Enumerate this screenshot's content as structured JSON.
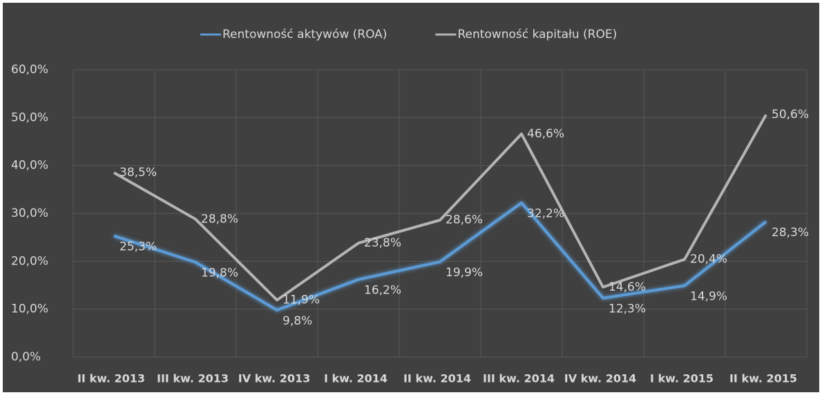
{
  "chart_data": {
    "type": "line",
    "categories": [
      "II kw. 2013",
      "III kw. 2013",
      "IV kw. 2013",
      "I kw. 2014",
      "II kw. 2014",
      "III kw. 2014",
      "IV kw. 2014",
      "I kw. 2015",
      "II kw. 2015"
    ],
    "series": [
      {
        "name": "Rentowność aktywów (ROA)",
        "color": "#5b9bd5",
        "values": [
          25.3,
          19.8,
          9.8,
          16.2,
          19.9,
          32.2,
          12.3,
          14.9,
          28.3
        ],
        "value_labels": [
          "25,3%",
          "19,8%",
          "9,8%",
          "16,2%",
          "19,9%",
          "32,2%",
          "12,3%",
          "14,9%",
          "28,3%"
        ]
      },
      {
        "name": "Rentowność kapitału (ROE)",
        "color": "#b4b4b4",
        "values": [
          38.5,
          28.8,
          11.9,
          23.8,
          28.6,
          46.6,
          14.6,
          20.4,
          50.6
        ],
        "value_labels": [
          "38,5%",
          "28,8%",
          "11,9%",
          "23,8%",
          "28,6%",
          "46,6%",
          "14,6%",
          "20,4%",
          "50,6%"
        ]
      }
    ],
    "ylim": [
      0,
      60
    ],
    "yticks": [
      {
        "value": 0,
        "label": "0,0%"
      },
      {
        "value": 10,
        "label": "10,0%"
      },
      {
        "value": 20,
        "label": "20,0%"
      },
      {
        "value": 30,
        "label": "30,0%"
      },
      {
        "value": 40,
        "label": "40,0%"
      },
      {
        "value": 50,
        "label": "50,0%"
      },
      {
        "value": 60,
        "label": "60,0%"
      }
    ],
    "grid": true,
    "legend": "top"
  }
}
